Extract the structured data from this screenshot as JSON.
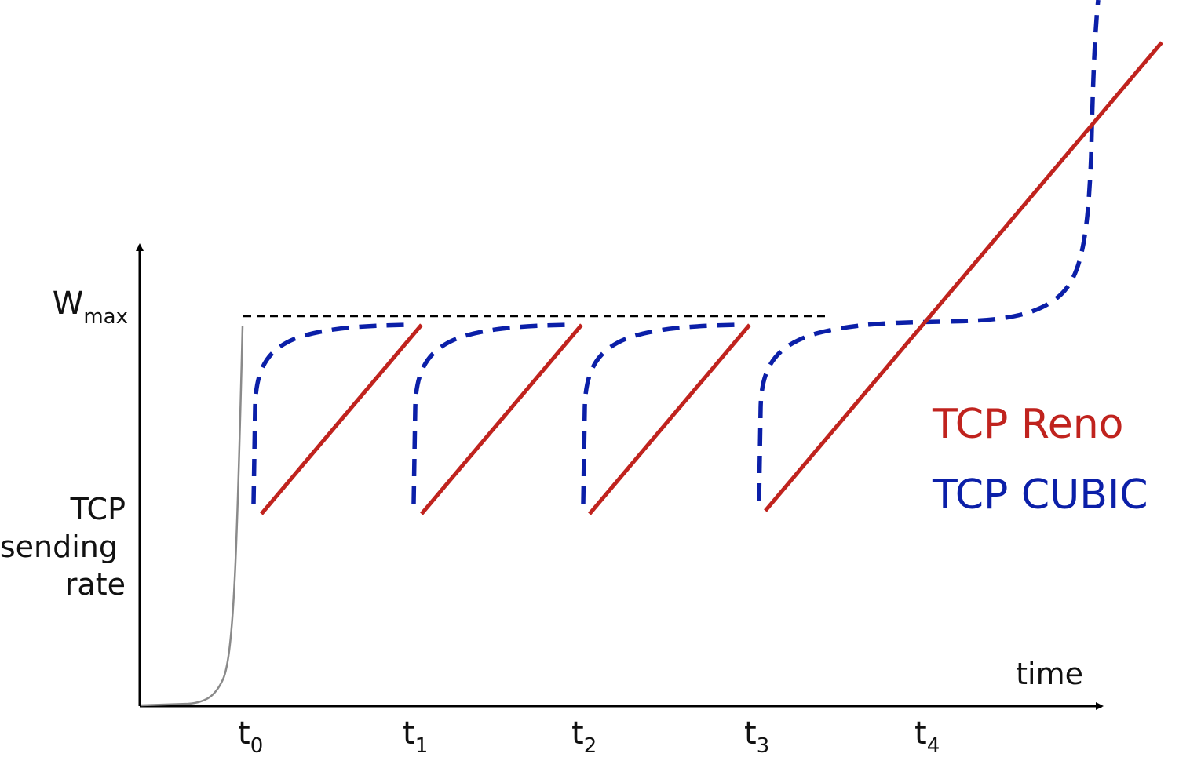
{
  "y_axis": {
    "wmax": {
      "main": "W",
      "sub": "max"
    },
    "label_lines": [
      "TCP",
      "sending",
      "rate"
    ]
  },
  "x_axis": {
    "label": "time",
    "ticks": [
      {
        "main": "t",
        "sub": "0"
      },
      {
        "main": "t",
        "sub": "1"
      },
      {
        "main": "t",
        "sub": "2"
      },
      {
        "main": "t",
        "sub": "3"
      },
      {
        "main": "t",
        "sub": "4"
      }
    ]
  },
  "legend": {
    "reno": "TCP Reno",
    "cubic": "TCP CUBIC"
  },
  "colors": {
    "reno": "#c0231e",
    "cubic": "#0b1fa8",
    "slow_start": "#8a8a8a",
    "axis": "#000000",
    "wmax_line": "#000000"
  }
}
